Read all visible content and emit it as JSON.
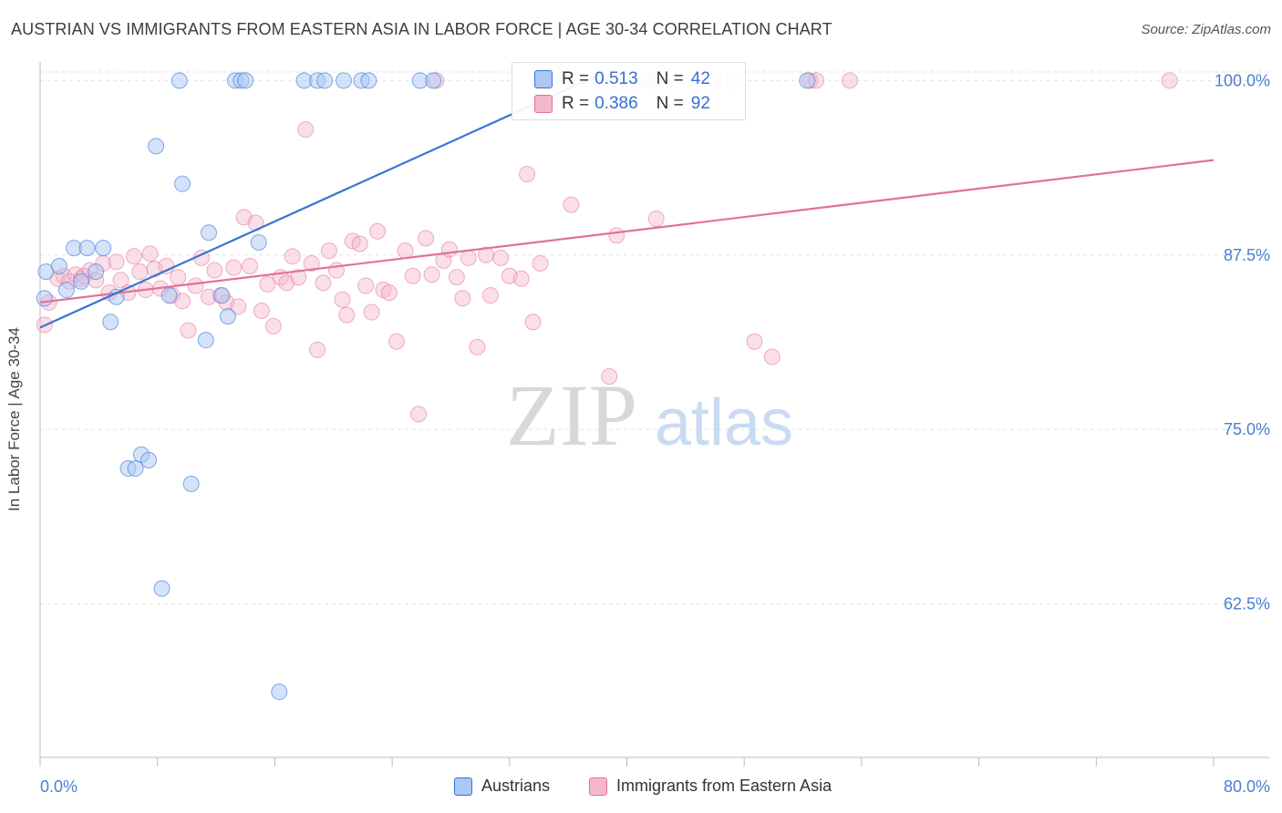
{
  "title": "AUSTRIAN VS IMMIGRANTS FROM EASTERN ASIA IN LABOR FORCE | AGE 30-34 CORRELATION CHART",
  "source": "Source: ZipAtlas.com",
  "watermark": {
    "zip": "ZIP",
    "atlas": "atlas"
  },
  "colors": {
    "blue": "#3a74d4",
    "blue_fill": "#aac8f3",
    "pink": "#e2719a",
    "pink_fill": "#f5b8cb",
    "tick_label": "#4a7fd0",
    "grid": "#e2e2e2"
  },
  "stats": [
    {
      "r_label": "R =",
      "r_value": "0.513",
      "n_label": "N =",
      "n_value": "42"
    },
    {
      "r_label": "R =",
      "r_value": "0.386",
      "n_label": "N =",
      "n_value": "92"
    }
  ],
  "chart_data": {
    "type": "scatter",
    "title": "AUSTRIAN VS IMMIGRANTS FROM EASTERN ASIA IN LABOR FORCE | AGE 30-34 CORRELATION CHART",
    "xlabel": "",
    "ylabel": "In Labor Force | Age 30-34",
    "xlim": [
      0,
      80
    ],
    "ylim": [
      51.5,
      101.2
    ],
    "x_tick_labels": [
      "0.0%",
      "80.0%"
    ],
    "y_ticks": [
      62.5,
      75.0,
      87.5,
      100.0
    ],
    "y_tick_labels": [
      "62.5%",
      "75.0%",
      "87.5%",
      "100.0%"
    ],
    "grid": true,
    "legend_position": "bottom",
    "series": [
      {
        "name": "Austrians",
        "trend": {
          "x": [
            0,
            38.5
          ],
          "y": [
            82.3,
            100.6
          ]
        },
        "points": [
          [
            0.3,
            84.4
          ],
          [
            0.4,
            86.3
          ],
          [
            1.3,
            86.7
          ],
          [
            1.8,
            85.0
          ],
          [
            2.3,
            88.0
          ],
          [
            2.8,
            85.6
          ],
          [
            3.2,
            88.0
          ],
          [
            3.8,
            86.3
          ],
          [
            4.3,
            88.0
          ],
          [
            4.8,
            82.7
          ],
          [
            5.2,
            84.5
          ],
          [
            6.0,
            72.2
          ],
          [
            6.5,
            72.2
          ],
          [
            6.9,
            73.2
          ],
          [
            7.4,
            72.8
          ],
          [
            7.9,
            95.3
          ],
          [
            8.3,
            63.6
          ],
          [
            8.8,
            84.6
          ],
          [
            9.5,
            100.0
          ],
          [
            9.7,
            92.6
          ],
          [
            10.3,
            71.1
          ],
          [
            11.3,
            81.4
          ],
          [
            11.5,
            89.1
          ],
          [
            12.4,
            84.6
          ],
          [
            12.8,
            83.1
          ],
          [
            13.3,
            100.0
          ],
          [
            13.7,
            100.0
          ],
          [
            14.0,
            100.0
          ],
          [
            14.9,
            88.4
          ],
          [
            16.3,
            56.2
          ],
          [
            18.0,
            100.0
          ],
          [
            18.9,
            100.0
          ],
          [
            19.4,
            100.0
          ],
          [
            20.7,
            100.0
          ],
          [
            21.9,
            100.0
          ],
          [
            22.4,
            100.0
          ],
          [
            25.9,
            100.0
          ],
          [
            26.8,
            100.0
          ],
          [
            41.9,
            100.0
          ],
          [
            47.3,
            100.0
          ],
          [
            52.3,
            100.0
          ],
          [
            41.5,
            100.0
          ]
        ]
      },
      {
        "name": "Immigrants from Eastern Asia",
        "trend": {
          "x": [
            0,
            80
          ],
          "y": [
            84.1,
            94.3
          ]
        },
        "points": [
          [
            0.3,
            82.5
          ],
          [
            0.6,
            84.1
          ],
          [
            1.2,
            85.8
          ],
          [
            1.6,
            86.0
          ],
          [
            2.0,
            85.6
          ],
          [
            2.4,
            86.1
          ],
          [
            2.8,
            85.8
          ],
          [
            3.0,
            86.0
          ],
          [
            3.4,
            86.4
          ],
          [
            3.8,
            85.7
          ],
          [
            4.3,
            86.9
          ],
          [
            4.7,
            84.8
          ],
          [
            5.2,
            87.0
          ],
          [
            5.5,
            85.7
          ],
          [
            6.0,
            84.8
          ],
          [
            6.4,
            87.4
          ],
          [
            6.8,
            86.3
          ],
          [
            7.2,
            85.0
          ],
          [
            7.5,
            87.6
          ],
          [
            7.8,
            86.5
          ],
          [
            8.2,
            85.1
          ],
          [
            8.6,
            86.7
          ],
          [
            9.0,
            84.6
          ],
          [
            9.4,
            85.9
          ],
          [
            9.7,
            84.2
          ],
          [
            10.1,
            82.1
          ],
          [
            10.6,
            85.3
          ],
          [
            11.0,
            87.3
          ],
          [
            11.5,
            84.5
          ],
          [
            11.9,
            86.4
          ],
          [
            12.3,
            84.6
          ],
          [
            12.7,
            84.1
          ],
          [
            13.2,
            86.6
          ],
          [
            13.5,
            83.8
          ],
          [
            13.9,
            90.2
          ],
          [
            14.3,
            86.7
          ],
          [
            14.7,
            89.8
          ],
          [
            15.1,
            83.5
          ],
          [
            15.5,
            85.4
          ],
          [
            15.9,
            82.4
          ],
          [
            16.4,
            85.9
          ],
          [
            16.8,
            85.5
          ],
          [
            17.2,
            87.4
          ],
          [
            17.6,
            85.9
          ],
          [
            18.1,
            96.5
          ],
          [
            18.5,
            86.9
          ],
          [
            18.9,
            80.7
          ],
          [
            19.3,
            85.5
          ],
          [
            19.7,
            87.8
          ],
          [
            20.2,
            86.4
          ],
          [
            20.6,
            84.3
          ],
          [
            20.9,
            83.2
          ],
          [
            21.3,
            88.5
          ],
          [
            21.8,
            88.3
          ],
          [
            22.2,
            85.3
          ],
          [
            22.6,
            83.4
          ],
          [
            23.0,
            89.2
          ],
          [
            23.4,
            85.0
          ],
          [
            23.8,
            84.8
          ],
          [
            24.3,
            81.3
          ],
          [
            24.9,
            87.8
          ],
          [
            25.4,
            86.0
          ],
          [
            25.8,
            76.1
          ],
          [
            26.3,
            88.7
          ],
          [
            26.7,
            86.1
          ],
          [
            27.0,
            100.0
          ],
          [
            27.5,
            87.1
          ],
          [
            27.9,
            87.9
          ],
          [
            28.4,
            85.9
          ],
          [
            28.8,
            84.4
          ],
          [
            29.2,
            87.3
          ],
          [
            29.8,
            80.9
          ],
          [
            30.4,
            87.5
          ],
          [
            30.7,
            84.6
          ],
          [
            31.4,
            87.3
          ],
          [
            32.0,
            86.0
          ],
          [
            32.8,
            85.8
          ],
          [
            33.2,
            93.3
          ],
          [
            33.6,
            82.7
          ],
          [
            34.1,
            86.9
          ],
          [
            36.2,
            91.1
          ],
          [
            38.3,
            100.0
          ],
          [
            38.8,
            78.8
          ],
          [
            39.3,
            88.9
          ],
          [
            42.0,
            90.1
          ],
          [
            48.7,
            81.3
          ],
          [
            49.9,
            80.2
          ],
          [
            52.5,
            100.0
          ],
          [
            52.9,
            100.0
          ],
          [
            55.2,
            100.0
          ],
          [
            77.0,
            100.0
          ],
          [
            46.0,
            100.0
          ]
        ]
      }
    ]
  },
  "legend": [
    {
      "label": "Austrians"
    },
    {
      "label": "Immigrants from Eastern Asia"
    }
  ]
}
